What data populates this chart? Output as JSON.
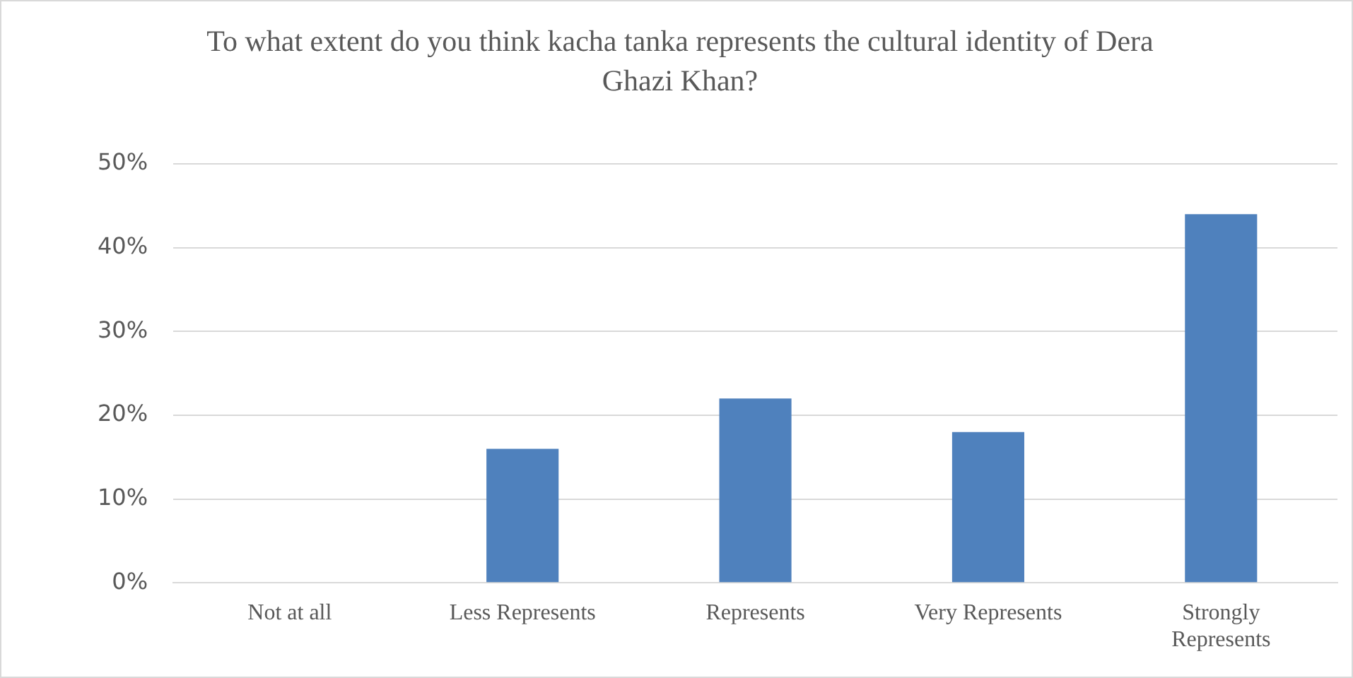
{
  "chart_data": {
    "type": "bar",
    "title": "To what extent do you think kacha tanka represents the cultural identity of Dera Ghazi Khan?",
    "categories": [
      "Not at all",
      "Less Represents",
      "Represents",
      "Very Represents",
      "Strongly Represents"
    ],
    "values": [
      0,
      16,
      22,
      18,
      44
    ],
    "color": "#4f81bd",
    "ylim": [
      0,
      50
    ],
    "yticks": [
      {
        "value": 0,
        "label": "0%"
      },
      {
        "value": 10,
        "label": "10%"
      },
      {
        "value": 20,
        "label": "20%"
      },
      {
        "value": 30,
        "label": "30%"
      },
      {
        "value": 40,
        "label": "40%"
      },
      {
        "value": 50,
        "label": "50%"
      }
    ],
    "grid": "y",
    "legend": false
  }
}
